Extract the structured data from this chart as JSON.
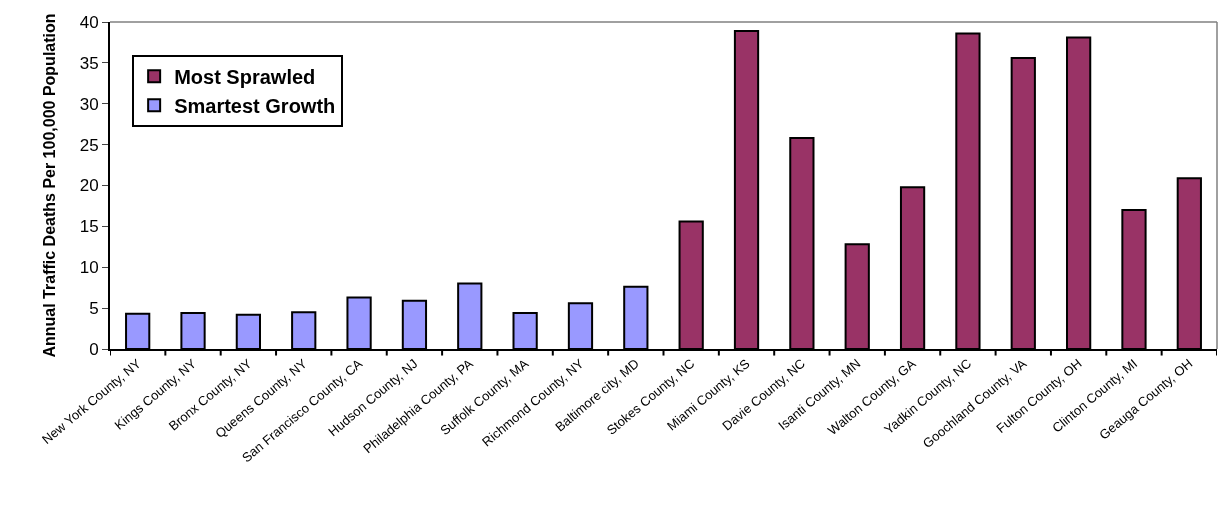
{
  "chart_data": {
    "type": "bar",
    "ylabel": "Annual Traffic Deaths Per 100,000 Population",
    "categories": [
      "New York County, NY",
      "Kings County, NY",
      "Bronx County, NY",
      "Queens County, NY",
      "San Francisco County, CA",
      "Hudson County, NJ",
      "Philadelphia County, PA",
      "Suffolk County, MA",
      "Richmond County, NY",
      "Baltimore city, MD",
      "Stokes County, NC",
      "Miami County, KS",
      "Davie County, NC",
      "Isanti County, MN",
      "Walton County, GA",
      "Yadkin County, NC",
      "Goochland County, VA",
      "Fulton County, OH",
      "Clinton County, MI",
      "Geauga County, OH"
    ],
    "series": [
      {
        "name": "Most Sprawled",
        "color": "#993366",
        "values": [
          null,
          null,
          null,
          null,
          null,
          null,
          null,
          null,
          null,
          null,
          15.6,
          38.9,
          25.8,
          12.8,
          19.8,
          38.6,
          35.6,
          38.1,
          17.0,
          20.9
        ]
      },
      {
        "name": "Smartest Growth",
        "color": "#9999ff",
        "values": [
          4.3,
          4.4,
          4.2,
          4.5,
          6.3,
          5.9,
          8.0,
          4.4,
          5.6,
          7.6,
          null,
          null,
          null,
          null,
          null,
          null,
          null,
          null,
          null,
          null
        ]
      }
    ],
    "ylim": [
      0,
      40
    ],
    "yticks": [
      0,
      5,
      10,
      15,
      20,
      25,
      30,
      35,
      40
    ],
    "legend": "top left"
  }
}
